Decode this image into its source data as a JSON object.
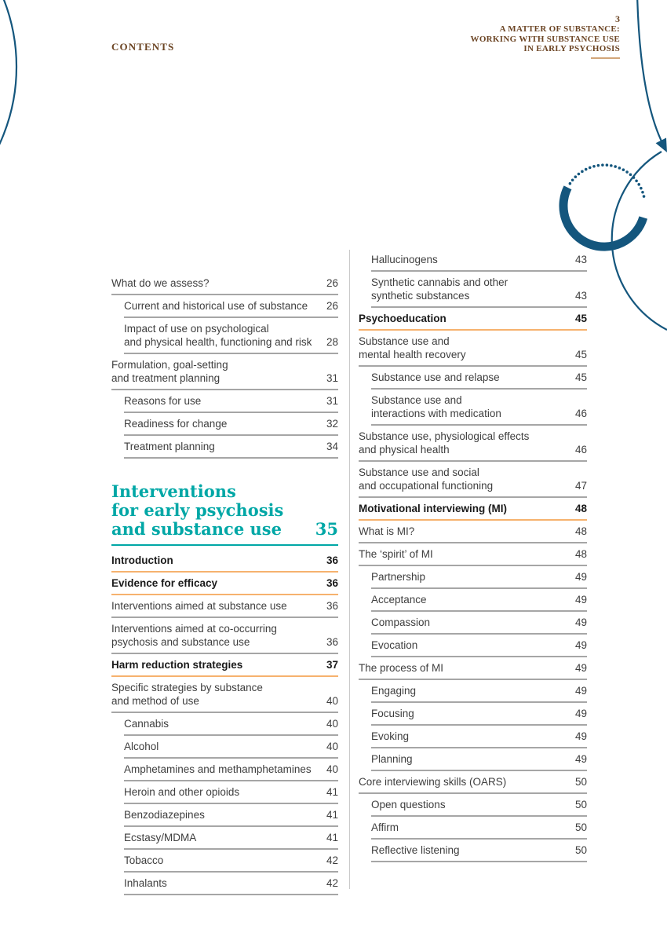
{
  "page_header": {
    "contents_label": "CONTENTS",
    "page_number": "3",
    "doc_title_lines": [
      "A MATTER OF SUBSTANCE:",
      "WORKING WITH SUBSTANCE USE",
      "IN EARLY PSYCHOSIS"
    ]
  },
  "colors": {
    "header_brown": "#6B4423",
    "accent_teal": "#00A7A6",
    "rule_gray": "#A6A6A6",
    "rule_orange": "#F6B26E",
    "decorative_blue": "#14567D",
    "title_underline_tan": "#D2A679"
  },
  "toc": {
    "left_column": {
      "top_entries": [
        {
          "lines": [
            "What do we assess?"
          ],
          "page": "26"
        },
        {
          "lines": [
            "Current and historical use of substance"
          ],
          "page": "26",
          "indent": 1
        },
        {
          "lines": [
            "Impact of use on psychological",
            "and physical health, functioning and risk"
          ],
          "page": "28",
          "indent": 1
        },
        {
          "lines": [
            "Formulation, goal-setting",
            "and treatment planning"
          ],
          "page": "31"
        },
        {
          "lines": [
            "Reasons for use"
          ],
          "page": "31",
          "indent": 1
        },
        {
          "lines": [
            "Readiness for change"
          ],
          "page": "32",
          "indent": 1
        },
        {
          "lines": [
            "Treatment planning"
          ],
          "page": "34",
          "indent": 1
        }
      ],
      "section_heading": {
        "lines": [
          "Interventions",
          "for early psychosis",
          "and substance use"
        ],
        "page": "35"
      },
      "bottom_entries": [
        {
          "lines": [
            "Introduction"
          ],
          "page": "36",
          "bold": 1
        },
        {
          "lines": [
            "Evidence for efficacy"
          ],
          "page": "36",
          "bold": 1
        },
        {
          "lines": [
            "Interventions aimed at substance use"
          ],
          "page": "36"
        },
        {
          "lines": [
            "Interventions aimed at co-occurring",
            "psychosis and substance use"
          ],
          "page": "36"
        },
        {
          "lines": [
            "Harm reduction strategies"
          ],
          "page": "37",
          "bold": 1
        },
        {
          "lines": [
            "Specific strategies by substance",
            "and method of use"
          ],
          "page": "40"
        },
        {
          "lines": [
            "Cannabis"
          ],
          "page": "40",
          "indent": 1
        },
        {
          "lines": [
            "Alcohol"
          ],
          "page": "40",
          "indent": 1
        },
        {
          "lines": [
            "Amphetamines and methamphetamines"
          ],
          "page": "40",
          "indent": 1
        },
        {
          "lines": [
            "Heroin and other opioids"
          ],
          "page": "41",
          "indent": 1
        },
        {
          "lines": [
            "Benzodiazepines"
          ],
          "page": "41",
          "indent": 1
        },
        {
          "lines": [
            "Ecstasy/MDMA"
          ],
          "page": "41",
          "indent": 1
        },
        {
          "lines": [
            "Tobacco"
          ],
          "page": "42",
          "indent": 1
        },
        {
          "lines": [
            "Inhalants"
          ],
          "page": "42",
          "indent": 1
        }
      ]
    },
    "right_column": {
      "entries": [
        {
          "lines": [
            "Hallucinogens"
          ],
          "page": "43",
          "indent": 1
        },
        {
          "lines": [
            "Synthetic cannabis and other",
            "synthetic substances"
          ],
          "page": "43",
          "indent": 1
        },
        {
          "lines": [
            "Psychoeducation"
          ],
          "page": "45",
          "bold": 1
        },
        {
          "lines": [
            "Substance use and",
            "mental health recovery"
          ],
          "page": "45"
        },
        {
          "lines": [
            "Substance use and relapse"
          ],
          "page": "45",
          "indent": 1
        },
        {
          "lines": [
            "Substance use and",
            "interactions with medication"
          ],
          "page": "46",
          "indent": 1
        },
        {
          "lines": [
            "Substance use, physiological effects",
            "and physical health"
          ],
          "page": "46"
        },
        {
          "lines": [
            "Substance use and social",
            "and occupational functioning"
          ],
          "page": "47"
        },
        {
          "lines": [
            "Motivational interviewing (MI)"
          ],
          "page": "48",
          "bold": 1
        },
        {
          "lines": [
            "What is MI?"
          ],
          "page": "48"
        },
        {
          "lines": [
            "The ‘spirit’ of MI"
          ],
          "page": "48"
        },
        {
          "lines": [
            "Partnership"
          ],
          "page": "49",
          "indent": 1
        },
        {
          "lines": [
            "Acceptance"
          ],
          "page": "49",
          "indent": 1
        },
        {
          "lines": [
            "Compassion"
          ],
          "page": "49",
          "indent": 1
        },
        {
          "lines": [
            "Evocation"
          ],
          "page": "49",
          "indent": 1
        },
        {
          "lines": [
            "The process of MI"
          ],
          "page": "49"
        },
        {
          "lines": [
            "Engaging"
          ],
          "page": "49",
          "indent": 1
        },
        {
          "lines": [
            "Focusing"
          ],
          "page": "49",
          "indent": 1
        },
        {
          "lines": [
            "Evoking"
          ],
          "page": "49",
          "indent": 1
        },
        {
          "lines": [
            "Planning"
          ],
          "page": "49",
          "indent": 1
        },
        {
          "lines": [
            "Core interviewing skills (OARS)"
          ],
          "page": "50"
        },
        {
          "lines": [
            "Open questions"
          ],
          "page": "50",
          "indent": 1
        },
        {
          "lines": [
            "Affirm"
          ],
          "page": "50",
          "indent": 1
        },
        {
          "lines": [
            "Reflective listening"
          ],
          "page": "50",
          "indent": 1
        }
      ]
    }
  }
}
